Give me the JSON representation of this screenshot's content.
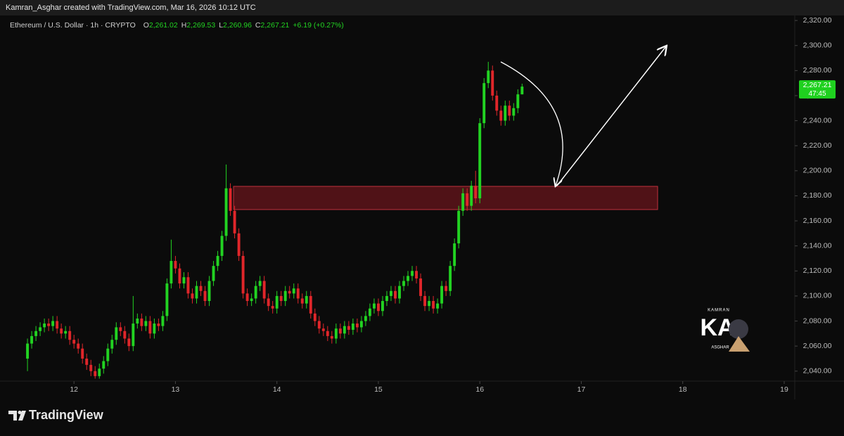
{
  "top_bar": {
    "text": "Kamran_Asghar created with TradingView.com, Mar 16, 2026 10:12 UTC"
  },
  "footer": {
    "brand": "TradingView"
  },
  "watermark": {
    "top": "KAMRAN",
    "main": "KA",
    "bottom": "ASGHAR"
  },
  "chart_data": {
    "type": "candlestick",
    "symbol": "Ethereum / U.S. Dollar · 1h · CRYPTO",
    "quote": [
      {
        "label": "O",
        "value": "2,261.02"
      },
      {
        "label": "H",
        "value": "2,269.53"
      },
      {
        "label": "L",
        "value": "2,260.96"
      },
      {
        "label": "C",
        "value": "2,267.21"
      }
    ],
    "change": "+6.19 (+0.27%)",
    "price_tag": "2,267.21",
    "countdown": "47:45",
    "up_color": "#22d322",
    "down_color": "#e0262a",
    "grid": false,
    "x": [
      13,
      14,
      15,
      16,
      17,
      18,
      19,
      20,
      21,
      22,
      23,
      24,
      25,
      26,
      27,
      28,
      29,
      30,
      31,
      32,
      33,
      34,
      35,
      36,
      37,
      38,
      39,
      40,
      41,
      42,
      43,
      44,
      45,
      46,
      47,
      48,
      49,
      50,
      51,
      52,
      53,
      54,
      55,
      56,
      57,
      58,
      59,
      60,
      61,
      62,
      63,
      64,
      65,
      66,
      67,
      68,
      69,
      70,
      71,
      72,
      73,
      74,
      75,
      76,
      77,
      78,
      79,
      80,
      81,
      82,
      83,
      84,
      85,
      86,
      87,
      88,
      89,
      90,
      91,
      92,
      93,
      94,
      95,
      96,
      97,
      98,
      99,
      100,
      101,
      102,
      103,
      104,
      105,
      106,
      107,
      108,
      109,
      110,
      111,
      112,
      113,
      114,
      115,
      116,
      117,
      118,
      119,
      120,
      121,
      122,
      123,
      124,
      125,
      126,
      127,
      128,
      129,
      130
    ],
    "open": [
      2050,
      2062,
      2068,
      2072,
      2075,
      2078,
      2076,
      2080,
      2074,
      2070,
      2072,
      2065,
      2062,
      2058,
      2050,
      2045,
      2040,
      2036,
      2042,
      2048,
      2058,
      2065,
      2075,
      2072,
      2066,
      2060,
      2078,
      2082,
      2076,
      2080,
      2070,
      2078,
      2076,
      2084,
      2110,
      2128,
      2122,
      2110,
      2115,
      2102,
      2098,
      2108,
      2104,
      2096,
      2112,
      2124,
      2132,
      2148,
      2186,
      2168,
      2150,
      2132,
      2102,
      2096,
      2098,
      2108,
      2112,
      2098,
      2092,
      2090,
      2100,
      2096,
      2104,
      2102,
      2106,
      2098,
      2094,
      2100,
      2086,
      2080,
      2074,
      2072,
      2068,
      2066,
      2074,
      2070,
      2076,
      2073,
      2078,
      2075,
      2080,
      2084,
      2090,
      2094,
      2088,
      2096,
      2100,
      2104,
      2098,
      2108,
      2112,
      2116,
      2120,
      2114,
      2100,
      2092,
      2096,
      2090,
      2094,
      2108,
      2104,
      2124,
      2142,
      2168,
      2182,
      2172,
      2188,
      2178,
      2238,
      2270,
      2280,
      2260,
      2248,
      2240,
      2252,
      2244,
      2250,
      2261.02
    ],
    "high": [
      2066,
      2072,
      2076,
      2079,
      2082,
      2082,
      2084,
      2084,
      2078,
      2076,
      2076,
      2069,
      2066,
      2062,
      2054,
      2049,
      2044,
      2046,
      2052,
      2062,
      2069,
      2079,
      2079,
      2076,
      2070,
      2100,
      2086,
      2086,
      2084,
      2084,
      2082,
      2082,
      2088,
      2114,
      2145,
      2132,
      2126,
      2119,
      2119,
      2106,
      2112,
      2112,
      2108,
      2116,
      2128,
      2136,
      2152,
      2205,
      2190,
      2172,
      2154,
      2136,
      2106,
      2102,
      2112,
      2116,
      2116,
      2102,
      2096,
      2104,
      2104,
      2108,
      2108,
      2110,
      2110,
      2102,
      2104,
      2104,
      2090,
      2084,
      2078,
      2076,
      2072,
      2078,
      2078,
      2080,
      2080,
      2082,
      2082,
      2084,
      2088,
      2094,
      2098,
      2098,
      2100,
      2104,
      2108,
      2108,
      2112,
      2116,
      2120,
      2124,
      2124,
      2118,
      2104,
      2100,
      2100,
      2098,
      2112,
      2112,
      2128,
      2146,
      2172,
      2186,
      2186,
      2192,
      2200,
      2242,
      2274,
      2287,
      2284,
      2264,
      2252,
      2256,
      2256,
      2254,
      2265,
      2269.53
    ],
    "low": [
      2040,
      2058,
      2064,
      2068,
      2071,
      2072,
      2072,
      2070,
      2066,
      2066,
      2061,
      2058,
      2054,
      2046,
      2041,
      2036,
      2034,
      2034,
      2038,
      2044,
      2054,
      2061,
      2068,
      2062,
      2056,
      2056,
      2074,
      2072,
      2072,
      2066,
      2066,
      2072,
      2072,
      2080,
      2106,
      2118,
      2106,
      2106,
      2098,
      2094,
      2094,
      2100,
      2092,
      2092,
      2108,
      2120,
      2128,
      2144,
      2164,
      2146,
      2128,
      2098,
      2092,
      2092,
      2094,
      2104,
      2094,
      2088,
      2086,
      2086,
      2092,
      2092,
      2098,
      2098,
      2094,
      2090,
      2090,
      2082,
      2076,
      2070,
      2068,
      2064,
      2062,
      2062,
      2066,
      2066,
      2069,
      2069,
      2071,
      2071,
      2076,
      2080,
      2086,
      2084,
      2084,
      2092,
      2096,
      2094,
      2094,
      2104,
      2108,
      2112,
      2110,
      2096,
      2088,
      2088,
      2086,
      2086,
      2090,
      2100,
      2100,
      2120,
      2138,
      2164,
      2168,
      2168,
      2174,
      2174,
      2234,
      2266,
      2256,
      2244,
      2236,
      2236,
      2240,
      2240,
      2246,
      2260.96
    ],
    "close": [
      2062,
      2068,
      2072,
      2075,
      2078,
      2076,
      2080,
      2074,
      2070,
      2072,
      2065,
      2062,
      2058,
      2050,
      2045,
      2040,
      2036,
      2042,
      2048,
      2058,
      2065,
      2075,
      2072,
      2066,
      2060,
      2078,
      2082,
      2076,
      2080,
      2070,
      2078,
      2076,
      2084,
      2110,
      2128,
      2122,
      2110,
      2115,
      2102,
      2098,
      2108,
      2104,
      2096,
      2112,
      2124,
      2132,
      2148,
      2186,
      2168,
      2150,
      2132,
      2102,
      2096,
      2098,
      2108,
      2112,
      2098,
      2092,
      2090,
      2100,
      2096,
      2104,
      2102,
      2106,
      2098,
      2094,
      2100,
      2086,
      2080,
      2074,
      2072,
      2068,
      2066,
      2074,
      2070,
      2076,
      2073,
      2078,
      2075,
      2080,
      2084,
      2090,
      2094,
      2088,
      2096,
      2100,
      2104,
      2098,
      2108,
      2112,
      2116,
      2120,
      2114,
      2100,
      2092,
      2096,
      2090,
      2094,
      2108,
      2104,
      2124,
      2142,
      2168,
      2182,
      2172,
      2188,
      2178,
      2238,
      2270,
      2280,
      2260,
      2248,
      2240,
      2252,
      2244,
      2250,
      2261.02,
      2267.21
    ],
    "xlim": [
      6.5,
      194.5
    ],
    "xticks": [
      {
        "value": 24,
        "label": "12"
      },
      {
        "value": 48,
        "label": "13"
      },
      {
        "value": 72,
        "label": "14"
      },
      {
        "value": 96,
        "label": "15"
      },
      {
        "value": 120,
        "label": "16"
      },
      {
        "value": 144,
        "label": "17"
      },
      {
        "value": 168,
        "label": "18"
      },
      {
        "value": 192,
        "label": "19"
      }
    ],
    "ylim": [
      2032,
      2324
    ],
    "yticks": [
      {
        "value": 2040,
        "label": "2,040.00"
      },
      {
        "value": 2060,
        "label": "2,060.00"
      },
      {
        "value": 2080,
        "label": "2,080.00"
      },
      {
        "value": 2100,
        "label": "2,100.00"
      },
      {
        "value": 2120,
        "label": "2,120.00"
      },
      {
        "value": 2140,
        "label": "2,140.00"
      },
      {
        "value": 2160,
        "label": "2,160.00"
      },
      {
        "value": 2180,
        "label": "2,180.00"
      },
      {
        "value": 2200,
        "label": "2,200.00"
      },
      {
        "value": 2220,
        "label": "2,220.00"
      },
      {
        "value": 2240,
        "label": "2,240.00"
      },
      {
        "value": 2260,
        "label": "2,260.00"
      },
      {
        "value": 2280,
        "label": "2,280.00"
      },
      {
        "value": 2300,
        "label": "2,300.00"
      },
      {
        "value": 2320,
        "label": "2,320.00"
      }
    ]
  }
}
